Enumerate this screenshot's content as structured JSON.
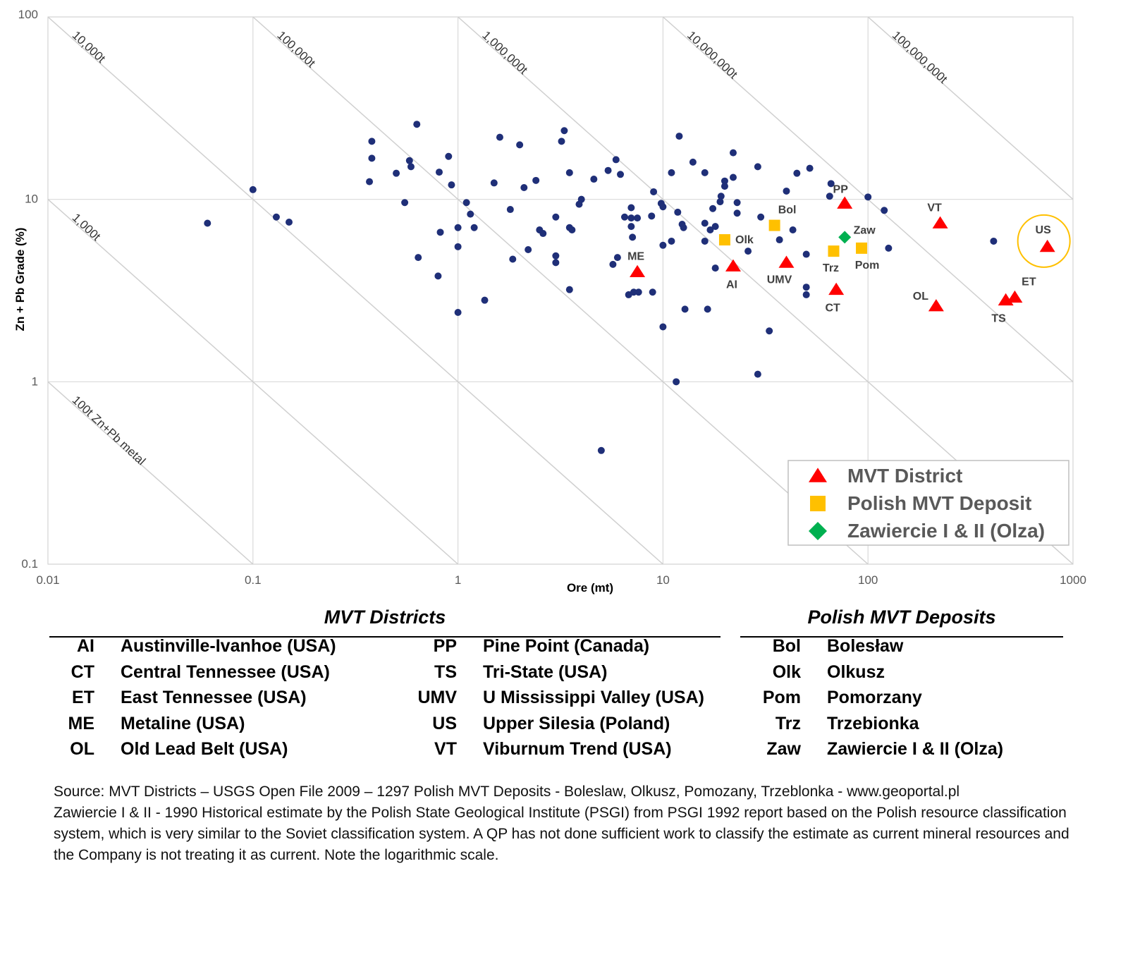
{
  "chart_data": {
    "type": "scatter",
    "xlabel": "Ore (mt)",
    "ylabel": "Zn + Pb Grade (%)",
    "x_scale": "log",
    "y_scale": "log",
    "xlim": [
      0.01,
      1000
    ],
    "ylim": [
      0.1,
      100
    ],
    "x_ticks": [
      "0.01",
      "0.1",
      "1",
      "10",
      "100",
      "1000"
    ],
    "y_ticks": [
      "0.1",
      "1",
      "10",
      "100"
    ],
    "grid": true,
    "legend_position": "bottom-right",
    "contained_metal_lines": [
      {
        "label": "100t Zn+Pb metal",
        "tonnes": 100
      },
      {
        "label": "1,000t",
        "tonnes": 1000
      },
      {
        "label": "10,000t",
        "tonnes": 10000
      },
      {
        "label": "100,000t",
        "tonnes": 100000
      },
      {
        "label": "1,000,000t",
        "tonnes": 1000000
      },
      {
        "label": "10,000,000t",
        "tonnes": 10000000
      },
      {
        "label": "100,000,000t",
        "tonnes": 100000000
      }
    ],
    "series": [
      {
        "name": "",
        "marker": "circle",
        "color": "#1f2f78",
        "points": [
          [
            0.06,
            7.4
          ],
          [
            0.1,
            11.3
          ],
          [
            0.13,
            8.0
          ],
          [
            0.15,
            7.5
          ],
          [
            0.37,
            12.5
          ],
          [
            0.38,
            20.8
          ],
          [
            0.38,
            16.8
          ],
          [
            0.5,
            13.9
          ],
          [
            0.55,
            9.6
          ],
          [
            0.58,
            16.3
          ],
          [
            0.59,
            15.1
          ],
          [
            0.63,
            25.8
          ],
          [
            0.64,
            4.8
          ],
          [
            0.8,
            3.8
          ],
          [
            0.81,
            14.1
          ],
          [
            0.82,
            6.6
          ],
          [
            0.9,
            17.2
          ],
          [
            0.93,
            12.0
          ],
          [
            1.0,
            7.0
          ],
          [
            1.0,
            5.5
          ],
          [
            1.0,
            2.4
          ],
          [
            1.1,
            9.6
          ],
          [
            1.15,
            8.3
          ],
          [
            1.2,
            7.0
          ],
          [
            1.35,
            2.8
          ],
          [
            1.5,
            12.3
          ],
          [
            1.6,
            21.9
          ],
          [
            1.8,
            8.8
          ],
          [
            1.85,
            4.7
          ],
          [
            2.0,
            19.9
          ],
          [
            2.1,
            11.6
          ],
          [
            2.2,
            5.3
          ],
          [
            2.4,
            12.7
          ],
          [
            2.5,
            6.8
          ],
          [
            2.6,
            6.5
          ],
          [
            3.0,
            8.0
          ],
          [
            3.0,
            4.9
          ],
          [
            3.0,
            4.5
          ],
          [
            3.2,
            20.8
          ],
          [
            3.3,
            23.8
          ],
          [
            3.5,
            14.0
          ],
          [
            3.5,
            7.0
          ],
          [
            3.5,
            3.2
          ],
          [
            3.6,
            6.8
          ],
          [
            3.9,
            9.4
          ],
          [
            4.0,
            10.0
          ],
          [
            4.6,
            12.9
          ],
          [
            5.0,
            0.42
          ],
          [
            5.4,
            14.4
          ],
          [
            5.7,
            4.4
          ],
          [
            5.9,
            16.5
          ],
          [
            6.0,
            4.8
          ],
          [
            6.2,
            13.7
          ],
          [
            6.5,
            8.0
          ],
          [
            6.8,
            3.0
          ],
          [
            7.0,
            7.9
          ],
          [
            7.0,
            7.1
          ],
          [
            7.0,
            9.0
          ],
          [
            7.1,
            6.2
          ],
          [
            7.2,
            3.1
          ],
          [
            7.5,
            7.9
          ],
          [
            7.6,
            3.1
          ],
          [
            8.8,
            8.1
          ],
          [
            8.9,
            3.1
          ],
          [
            9.0,
            11.0
          ],
          [
            9.8,
            9.5
          ],
          [
            10.0,
            9.1
          ],
          [
            10.0,
            5.6
          ],
          [
            10.0,
            2.0
          ],
          [
            11.0,
            14.0
          ],
          [
            11.0,
            5.9
          ],
          [
            11.6,
            1.0
          ],
          [
            11.8,
            8.5
          ],
          [
            12.0,
            22.2
          ],
          [
            12.4,
            7.3
          ],
          [
            12.6,
            7.0
          ],
          [
            12.8,
            2.5
          ],
          [
            14.0,
            16.0
          ],
          [
            16.0,
            14.0
          ],
          [
            16.0,
            7.4
          ],
          [
            16.0,
            5.9
          ],
          [
            16.5,
            2.5
          ],
          [
            17.0,
            6.8
          ],
          [
            17.5,
            8.9
          ],
          [
            18.0,
            4.2
          ],
          [
            18.0,
            7.1
          ],
          [
            19.0,
            9.7
          ],
          [
            19.2,
            10.4
          ],
          [
            20.0,
            12.6
          ],
          [
            20.0,
            11.8
          ],
          [
            22.0,
            18.0
          ],
          [
            22.0,
            13.2
          ],
          [
            23.0,
            9.6
          ],
          [
            23.0,
            8.4
          ],
          [
            26.0,
            5.2
          ],
          [
            29.0,
            15.1
          ],
          [
            29.0,
            1.1
          ],
          [
            30.0,
            8.0
          ],
          [
            33.0,
            1.9
          ],
          [
            37.0,
            6.0
          ],
          [
            40.0,
            11.1
          ],
          [
            43.0,
            6.8
          ],
          [
            45.0,
            13.9
          ],
          [
            50.0,
            5.0
          ],
          [
            50.0,
            3.3
          ],
          [
            50.0,
            3.0
          ],
          [
            52.0,
            14.8
          ],
          [
            65.0,
            10.4
          ],
          [
            66.0,
            12.2
          ],
          [
            100.0,
            10.3
          ],
          [
            120.0,
            8.7
          ],
          [
            126.0,
            5.4
          ],
          [
            410.0,
            5.9
          ]
        ]
      },
      {
        "name": "MVT District",
        "marker": "triangle",
        "color": "#ff0000",
        "points": [
          {
            "label": "ME",
            "x": 7.5,
            "y": 4.0
          },
          {
            "label": "AI",
            "x": 22.0,
            "y": 4.3
          },
          {
            "label": "UMV",
            "x": 40.0,
            "y": 4.5
          },
          {
            "label": "CT",
            "x": 70.0,
            "y": 3.2
          },
          {
            "label": "PP",
            "x": 77.0,
            "y": 9.5
          },
          {
            "label": "VT",
            "x": 225.0,
            "y": 7.4
          },
          {
            "label": "OL",
            "x": 215.0,
            "y": 2.6
          },
          {
            "label": "TS",
            "x": 470.0,
            "y": 2.8
          },
          {
            "label": "ET",
            "x": 520.0,
            "y": 2.9
          },
          {
            "label": "US",
            "x": 750.0,
            "y": 5.5
          }
        ]
      },
      {
        "name": "Polish MVT Deposit",
        "marker": "square",
        "color": "#ffc000",
        "points": [
          {
            "label": "Olk",
            "x": 20.0,
            "y": 6.0
          },
          {
            "label": "Bol",
            "x": 35.0,
            "y": 7.2
          },
          {
            "label": "Trz",
            "x": 68.0,
            "y": 5.2
          },
          {
            "label": "Pom",
            "x": 93.0,
            "y": 5.4
          }
        ]
      },
      {
        "name": "Zawiercie I & II (Olza)",
        "marker": "diamond",
        "color": "#00b050",
        "points": [
          {
            "label": "Zaw",
            "x": 77.0,
            "y": 6.2
          }
        ]
      }
    ],
    "highlight": {
      "label": "US",
      "shape": "circle",
      "color": "#ffc000"
    }
  },
  "tables": {
    "districts": {
      "title": "MVT Districts",
      "rows": [
        {
          "abbr": "AI",
          "name": "Austinville-Ivanhoe (USA)",
          "abbr2": "PP",
          "name2": "Pine Point (Canada)"
        },
        {
          "abbr": "CT",
          "name": "Central Tennessee (USA)",
          "abbr2": "TS",
          "name2": "Tri-State (USA)"
        },
        {
          "abbr": "ET",
          "name": "East Tennessee (USA)",
          "abbr2": "UMV",
          "name2": "U Mississippi Valley (USA)"
        },
        {
          "abbr": "ME",
          "name": "Metaline (USA)",
          "abbr2": "US",
          "name2": "Upper Silesia (Poland)"
        },
        {
          "abbr": "OL",
          "name": "Old Lead Belt (USA)",
          "abbr2": "VT",
          "name2": "Viburnum Trend (USA)"
        }
      ]
    },
    "polish": {
      "title": "Polish MVT Deposits",
      "rows": [
        {
          "abbr": "Bol",
          "name": "Bolesław"
        },
        {
          "abbr": "Olk",
          "name": "Olkusz"
        },
        {
          "abbr": "Pom",
          "name": "Pomorzany"
        },
        {
          "abbr": "Trz",
          "name": "Trzebionka"
        },
        {
          "abbr": "Zaw",
          "name": "Zawiercie I & II (Olza)"
        }
      ]
    }
  },
  "source": {
    "line1": "Source: MVT Districts – USGS Open File 2009 – 1297 Polish MVT Deposits - Boleslaw, Olkusz, Pomozany, Trzeblonka - www.geoportal.pl",
    "line2": "Zawiercie I & II - 1990 Historical estimate by the Polish State Geological Institute (PSGI) from PSGI 1992 report based on the Polish resource classification system, which is very similar to the Soviet classification system.  A QP has not done sufficient work to classify the estimate as current mineral resources and the Company is not treating it as current. Note the logarithmic scale."
  }
}
